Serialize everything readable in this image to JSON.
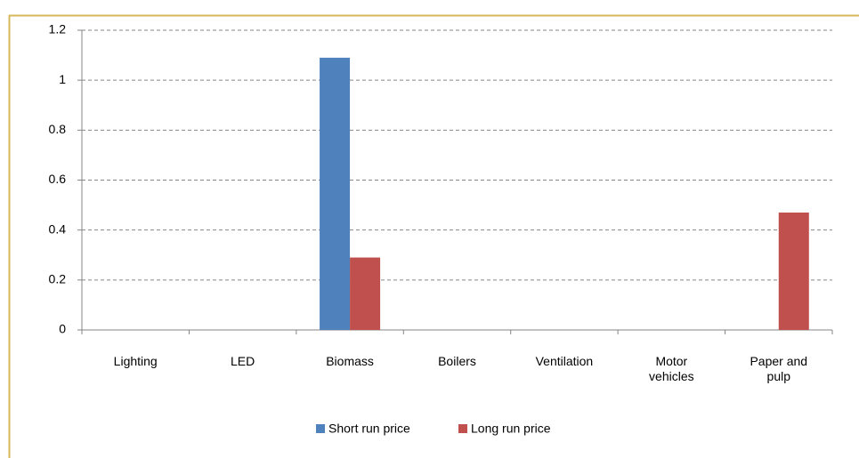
{
  "chart_data": {
    "type": "bar",
    "categories": [
      "Lighting",
      "LED",
      "Biomass",
      "Boilers",
      "Ventilation",
      "Motor vehicles",
      "Paper and pulp"
    ],
    "series": [
      {
        "name": "Short run price",
        "color": "#4f81bd",
        "values": [
          0,
          0,
          1.09,
          0,
          0,
          0,
          0
        ]
      },
      {
        "name": "Long run price",
        "color": "#c0504d",
        "values": [
          0,
          0,
          0.29,
          0,
          0,
          0,
          0.47
        ]
      }
    ],
    "ylim": [
      0,
      1.2
    ],
    "yticks": [
      0,
      0.2,
      0.4,
      0.6,
      0.8,
      1,
      1.2
    ],
    "grid": true,
    "legend": "bottom"
  }
}
